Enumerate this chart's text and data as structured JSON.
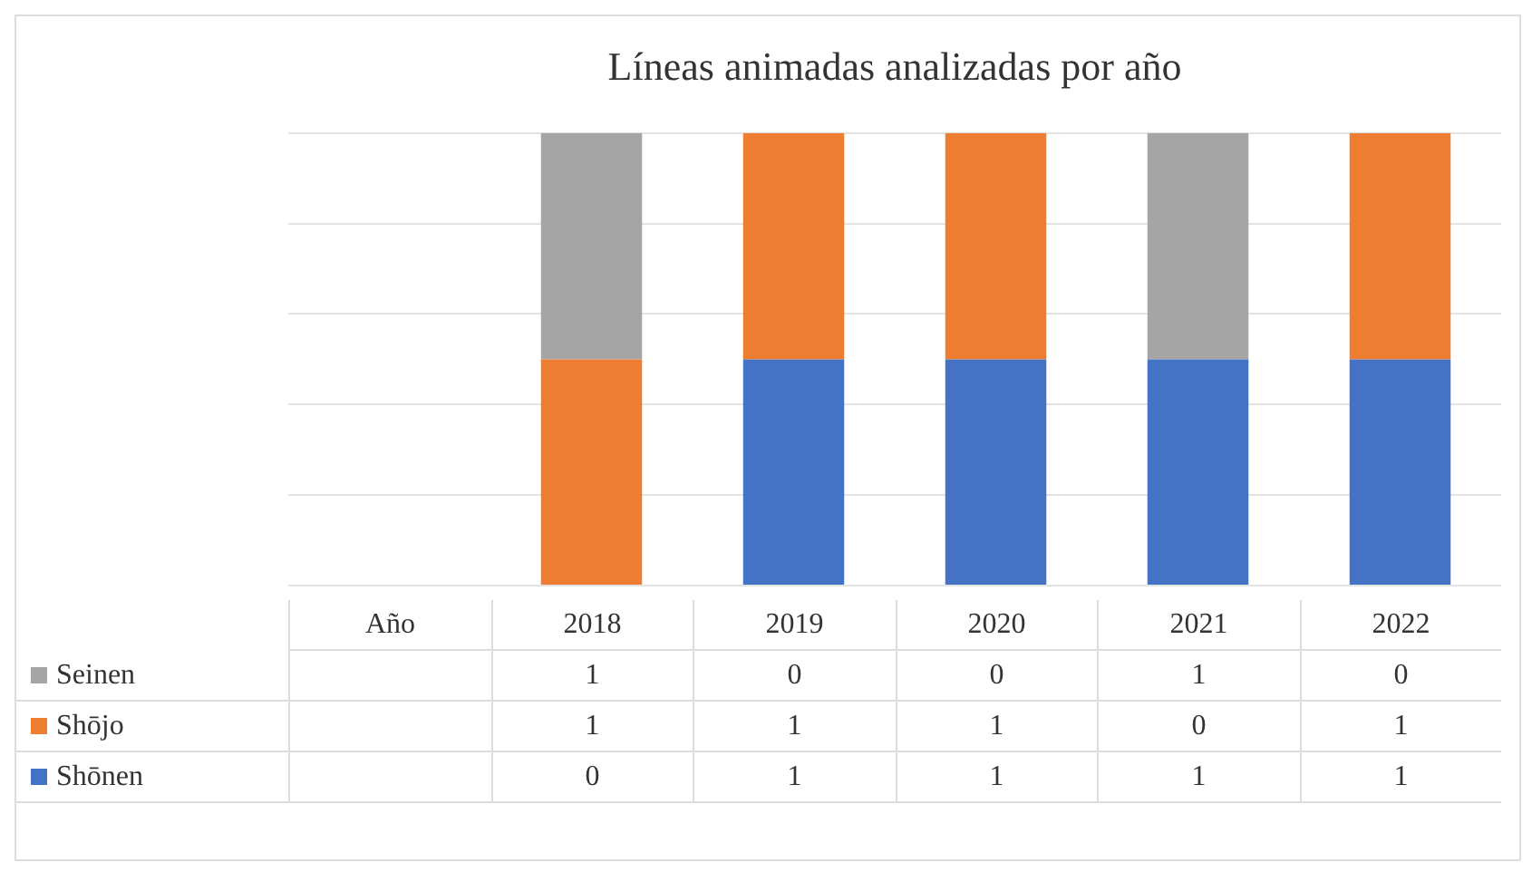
{
  "chart_data": {
    "type": "bar",
    "title": "Líneas animadas analizadas por año",
    "categories": [
      "Año",
      "2018",
      "2019",
      "2020",
      "2021",
      "2022"
    ],
    "stacked": true,
    "data_labels": true,
    "tick_labels": "x",
    "grid": "y",
    "legend": "bottom",
    "ylim": [
      0,
      2
    ],
    "yticks": [
      {
        "value": 0,
        "label": null
      },
      {
        "value": 0.4,
        "label": null
      },
      {
        "value": 0.8,
        "label": null
      },
      {
        "value": 1.2,
        "label": null
      },
      {
        "value": 1.6,
        "label": null
      },
      {
        "value": 2,
        "label": null
      }
    ],
    "series": [
      {
        "name": "Shōnen",
        "color": "#4472c4",
        "values": [
          null,
          0,
          1,
          1,
          1,
          1
        ]
      },
      {
        "name": "Shōjo",
        "color": "#ed7d31",
        "values": [
          null,
          1,
          1,
          1,
          0,
          1
        ]
      },
      {
        "name": "Seinen",
        "color": "#a5a5a5",
        "values": [
          null,
          1,
          0,
          0,
          1,
          0
        ]
      }
    ]
  }
}
